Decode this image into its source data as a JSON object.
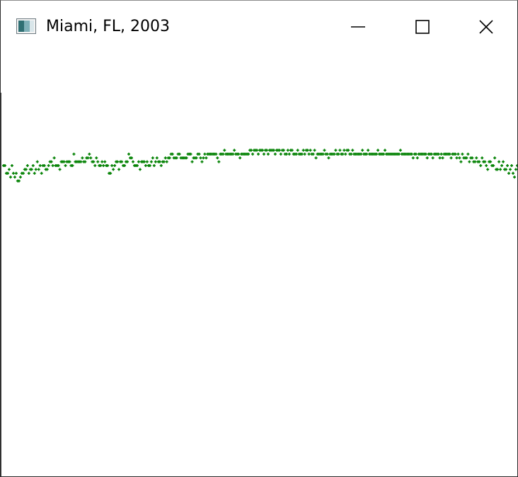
{
  "window": {
    "title": "Miami, FL, 2003",
    "app_icon": "window-app-icon",
    "controls": {
      "minimize_icon": "minimize-icon",
      "maximize_icon": "maximize-icon",
      "close_icon": "close-icon"
    }
  },
  "colors": {
    "points": "#008000",
    "background": "#ffffff"
  },
  "chart_data": {
    "type": "scatter",
    "title": "",
    "xlabel": "",
    "ylabel": "",
    "xlim": [
      1,
      365
    ],
    "ylim": [
      0,
      100
    ],
    "series": [
      {
        "values": [
          81,
          81,
          79,
          79,
          80,
          78,
          81,
          79,
          78,
          79,
          77,
          77,
          78,
          79,
          79,
          80,
          80,
          81,
          79,
          80,
          80,
          81,
          79,
          80,
          82,
          80,
          81,
          79,
          81,
          81,
          80,
          80,
          81,
          82,
          82,
          81,
          83,
          81,
          81,
          81,
          80,
          82,
          82,
          82,
          81,
          82,
          82,
          82,
          81,
          81,
          84,
          82,
          82,
          82,
          82,
          82,
          83,
          82,
          82,
          83,
          83,
          84,
          83,
          82,
          82,
          81,
          83,
          82,
          81,
          81,
          82,
          81,
          82,
          81,
          81,
          79,
          79,
          81,
          80,
          81,
          82,
          82,
          80,
          82,
          82,
          81,
          81,
          82,
          82,
          84,
          83,
          83,
          82,
          81,
          81,
          81,
          82,
          80,
          82,
          82,
          82,
          81,
          82,
          81,
          81,
          82,
          83,
          81,
          82,
          83,
          82,
          82,
          81,
          82,
          82,
          83,
          82,
          83,
          83,
          84,
          84,
          83,
          83,
          83,
          84,
          84,
          83,
          83,
          83,
          83,
          83,
          84,
          84,
          84,
          82,
          83,
          83,
          83,
          84,
          84,
          83,
          82,
          83,
          84,
          83,
          84,
          84,
          84,
          84,
          84,
          84,
          84,
          83,
          82,
          84,
          84,
          84,
          85,
          84,
          84,
          84,
          84,
          84,
          84,
          85,
          84,
          84,
          84,
          83,
          84,
          84,
          84,
          84,
          84,
          84,
          85,
          85,
          84,
          85,
          85,
          85,
          84,
          85,
          85,
          85,
          84,
          85,
          85,
          84,
          85,
          85,
          85,
          85,
          84,
          85,
          85,
          85,
          84,
          85,
          85,
          84,
          84,
          85,
          84,
          85,
          85,
          84,
          84,
          84,
          85,
          84,
          84,
          84,
          85,
          84,
          85,
          85,
          84,
          85,
          84,
          84,
          85,
          83,
          84,
          84,
          84,
          84,
          84,
          85,
          84,
          84,
          83,
          84,
          84,
          84,
          84,
          85,
          84,
          84,
          85,
          84,
          84,
          85,
          84,
          85,
          85,
          84,
          84,
          85,
          84,
          84,
          84,
          84,
          84,
          84,
          85,
          84,
          84,
          84,
          85,
          84,
          84,
          84,
          84,
          84,
          84,
          85,
          84,
          84,
          84,
          84,
          85,
          84,
          84,
          84,
          84,
          84,
          84,
          84,
          84,
          84,
          84,
          85,
          84,
          84,
          84,
          84,
          84,
          84,
          84,
          84,
          83,
          84,
          84,
          83,
          84,
          84,
          84,
          84,
          84,
          84,
          83,
          84,
          84,
          84,
          83,
          84,
          84,
          84,
          84,
          83,
          84,
          83,
          84,
          84,
          84,
          84,
          84,
          83,
          84,
          84,
          84,
          83,
          84,
          83,
          82,
          84,
          83,
          83,
          83,
          84,
          82,
          83,
          83,
          82,
          82,
          83,
          82,
          82,
          81,
          83,
          82,
          82,
          81,
          80,
          82,
          82,
          81,
          81,
          83,
          80,
          80,
          82,
          80,
          81,
          82,
          80,
          80,
          81,
          79,
          80,
          81,
          79,
          78,
          80,
          81,
          80,
          79,
          80,
          82,
          79,
          79
        ]
      }
    ]
  }
}
